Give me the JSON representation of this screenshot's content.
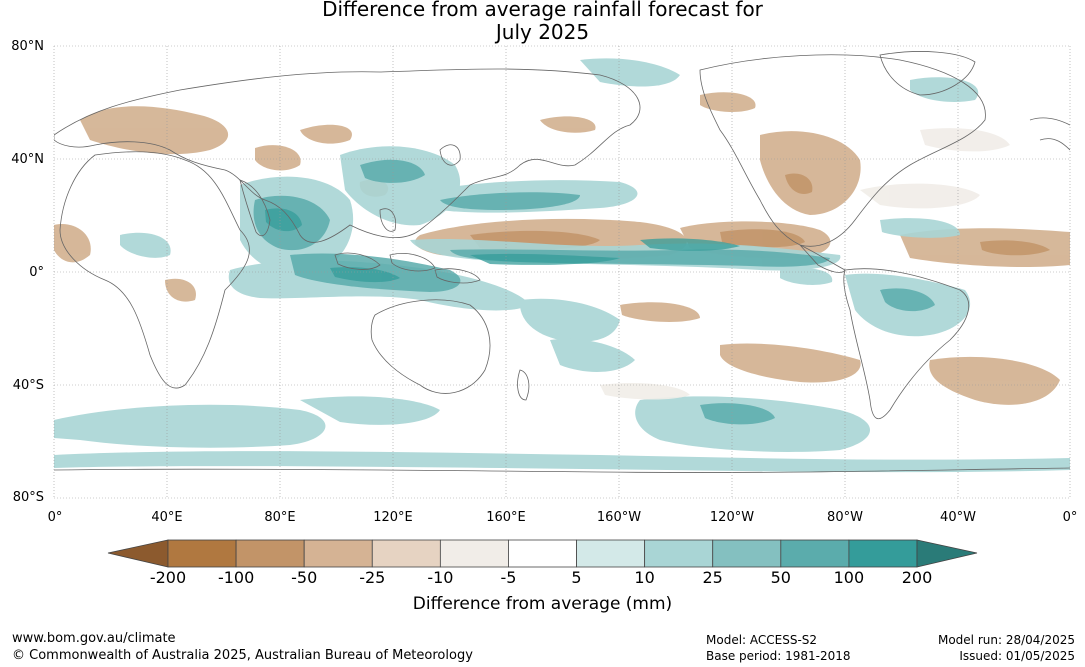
{
  "title": {
    "line1": "Difference from average rainfall forecast for",
    "line2": "July 2025"
  },
  "lat_labels": [
    "80°N",
    "40°N",
    "0°",
    "40°S",
    "80°S"
  ],
  "lon_labels": [
    "0°",
    "40°E",
    "80°E",
    "120°E",
    "160°E",
    "160°W",
    "120°W",
    "80°W",
    "40°W",
    "0°"
  ],
  "colorbar": {
    "ticks": [
      "-200",
      "-100",
      "-50",
      "-25",
      "-10",
      "-5",
      "5",
      "10",
      "25",
      "50",
      "100",
      "200"
    ],
    "colors": [
      "#b07840",
      "#c29468",
      "#d5b394",
      "#e6d3c2",
      "#f1ede8",
      "#ffffff",
      "#d3e9e8",
      "#a9d5d5",
      "#84c0c0",
      "#5bacac",
      "#349c9a"
    ],
    "under_color": "#8c5a2e",
    "over_color": "#2a7b78",
    "label": "Difference from average (mm)"
  },
  "footer": {
    "website": "www.bom.gov.au/climate",
    "copyright": "© Commonwealth of Australia 2025, Australian Bureau of Meteorology",
    "model": "Model: ACCESS-S2",
    "base_period": "Base period: 1981-2018",
    "model_run": "Model run: 28/04/2025",
    "issued": "Issued: 01/05/2025"
  }
}
